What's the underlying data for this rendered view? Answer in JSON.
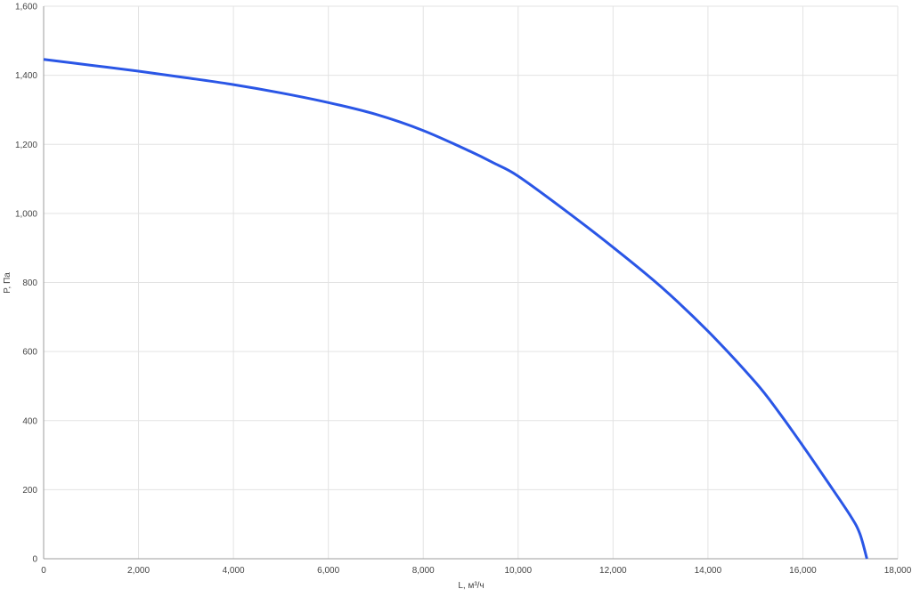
{
  "chart_data": {
    "type": "line",
    "title": "",
    "xlabel": "L, м³/ч",
    "ylabel": "P, Па",
    "xlim": [
      0,
      18000
    ],
    "ylim": [
      0,
      1600
    ],
    "x_ticks": [
      0,
      2000,
      4000,
      6000,
      8000,
      10000,
      12000,
      14000,
      16000,
      18000
    ],
    "x_tick_labels": [
      "0",
      "2,000",
      "4,000",
      "6,000",
      "8,000",
      "10,000",
      "12,000",
      "14,000",
      "16,000",
      "18,000"
    ],
    "y_ticks": [
      0,
      200,
      400,
      600,
      800,
      1000,
      1200,
      1400,
      1600
    ],
    "y_tick_labels": [
      "0",
      "200",
      "400",
      "600",
      "800",
      "1,000",
      "1,200",
      "1,400",
      "1,600"
    ],
    "grid": true,
    "legend": "none",
    "series": [
      {
        "color": "#2a56e6",
        "x": [
          0,
          1000,
          2000,
          3000,
          4000,
          5000,
          6000,
          7000,
          8000,
          9000,
          9500,
          10000,
          11000,
          12000,
          13000,
          14000,
          15000,
          15500,
          16000,
          16500,
          17000,
          17200,
          17350
        ],
        "y": [
          1446,
          1429,
          1412,
          1393,
          1373,
          1349,
          1321,
          1287,
          1240,
          1179,
          1145,
          1108,
          1008,
          902,
          789,
          659,
          511,
          423,
          327,
          227,
          125,
          73,
          0
        ]
      }
    ]
  }
}
